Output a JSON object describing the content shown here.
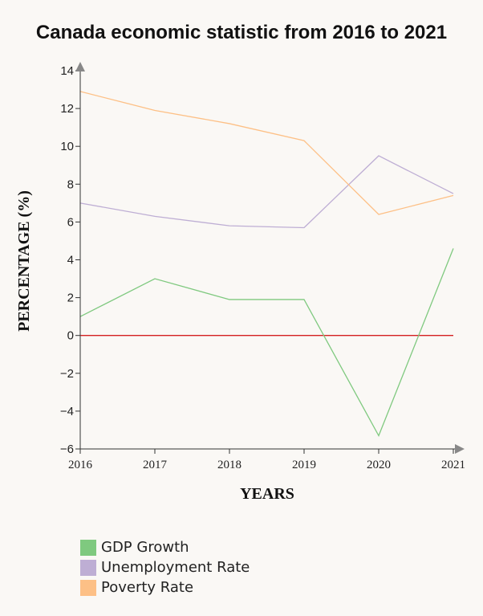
{
  "chart_data": {
    "type": "line",
    "title": "Canada economic statistic from 2016 to 2021",
    "xlabel": "YEARS",
    "ylabel": "PERCENTAGE (%)",
    "x": [
      "2016",
      "2017",
      "2018",
      "2019",
      "2020",
      "2021"
    ],
    "ylim": [
      -6,
      14
    ],
    "yticks": [
      "14",
      "12",
      "10",
      "8",
      "6",
      "4",
      "2",
      "0",
      "−2",
      "−4",
      "−6"
    ],
    "reference_line": {
      "y": 0,
      "color": "#d42020"
    },
    "highlighted_ytick": {
      "label": "−4",
      "color": "#d42020"
    },
    "series": [
      {
        "name": "GDP Growth",
        "color": "#7fc97f",
        "values": [
          1.0,
          3.0,
          1.9,
          1.9,
          -5.3,
          4.6
        ]
      },
      {
        "name": "Unemployment Rate",
        "color": "#beaed4",
        "values": [
          7.0,
          6.3,
          5.8,
          5.7,
          9.5,
          7.5
        ]
      },
      {
        "name": "Poverty Rate",
        "color": "#fdc086",
        "values": [
          12.9,
          11.9,
          11.2,
          10.3,
          6.4,
          7.4
        ]
      }
    ],
    "grid": false,
    "legend_position": "bottom-left"
  }
}
